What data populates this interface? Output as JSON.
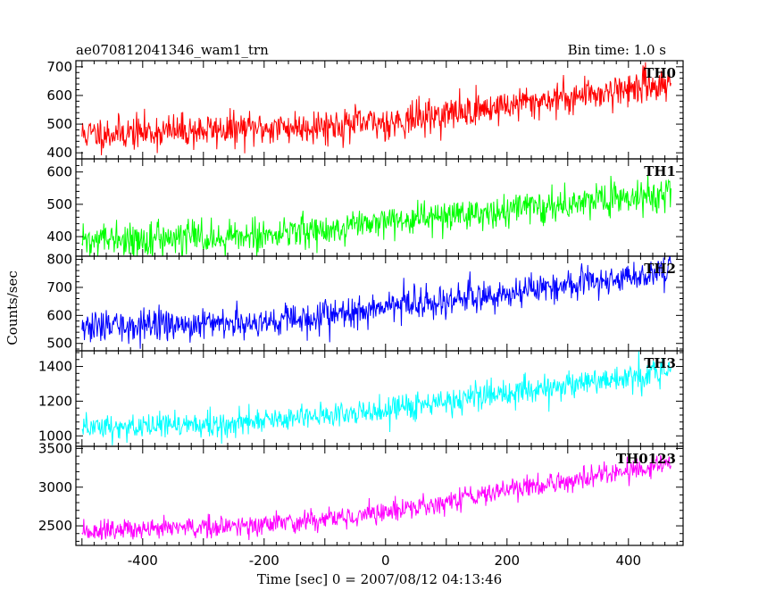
{
  "header": {
    "title": "ae070812041346_wam1_trn",
    "bin_time": "Bin time: 1.0 s"
  },
  "chart_data": {
    "type": "line",
    "title": "ae070812041346_wam1_trn",
    "subtitle": "Bin time: 1.0 s",
    "xlabel": "Time [sec] 0 = 2007/08/12 04:13:46",
    "ylabel": "Counts/sec",
    "xlim": [
      -510,
      490
    ],
    "xticks": [
      -400,
      -200,
      0,
      200,
      400
    ],
    "x_range_data": [
      -500,
      470
    ],
    "panels": [
      {
        "name": "TH0",
        "color": "#ff0000",
        "ylim": [
          385,
          715
        ],
        "yticks": [
          400,
          500,
          600,
          700
        ],
        "trend": [
          [
            -500,
            465
          ],
          [
            -200,
            485
          ],
          [
            0,
            505
          ],
          [
            200,
            565
          ],
          [
            470,
            645
          ]
        ],
        "noise_sd": 30,
        "seed": 11
      },
      {
        "name": "TH1",
        "color": "#00ff00",
        "ylim": [
          345,
          635
        ],
        "yticks": [
          400,
          500,
          600
        ],
        "trend": [
          [
            -500,
            385
          ],
          [
            -200,
            405
          ],
          [
            0,
            440
          ],
          [
            200,
            485
          ],
          [
            470,
            535
          ]
        ],
        "noise_sd": 25,
        "seed": 22
      },
      {
        "name": "TH2",
        "color": "#0000ff",
        "ylim": [
          480,
          805
        ],
        "yticks": [
          500,
          600,
          700,
          800
        ],
        "trend": [
          [
            -500,
            555
          ],
          [
            -200,
            580
          ],
          [
            0,
            625
          ],
          [
            200,
            680
          ],
          [
            470,
            755
          ]
        ],
        "noise_sd": 28,
        "seed": 33
      },
      {
        "name": "TH3",
        "color": "#00ffff",
        "ylim": [
          950,
          1480
        ],
        "yticks": [
          1000,
          1200,
          1400
        ],
        "trend": [
          [
            -500,
            1040
          ],
          [
            -200,
            1085
          ],
          [
            0,
            1150
          ],
          [
            200,
            1245
          ],
          [
            470,
            1365
          ]
        ],
        "noise_sd": 40,
        "seed": 44
      },
      {
        "name": "TH0123",
        "color": "#ff00ff",
        "ylim": [
          2270,
          3505
        ],
        "yticks": [
          2500,
          3000,
          3500
        ],
        "trend": [
          [
            -500,
            2420
          ],
          [
            -200,
            2510
          ],
          [
            0,
            2680
          ],
          [
            200,
            2960
          ],
          [
            470,
            3290
          ]
        ],
        "noise_sd": 70,
        "seed": 55
      }
    ]
  }
}
